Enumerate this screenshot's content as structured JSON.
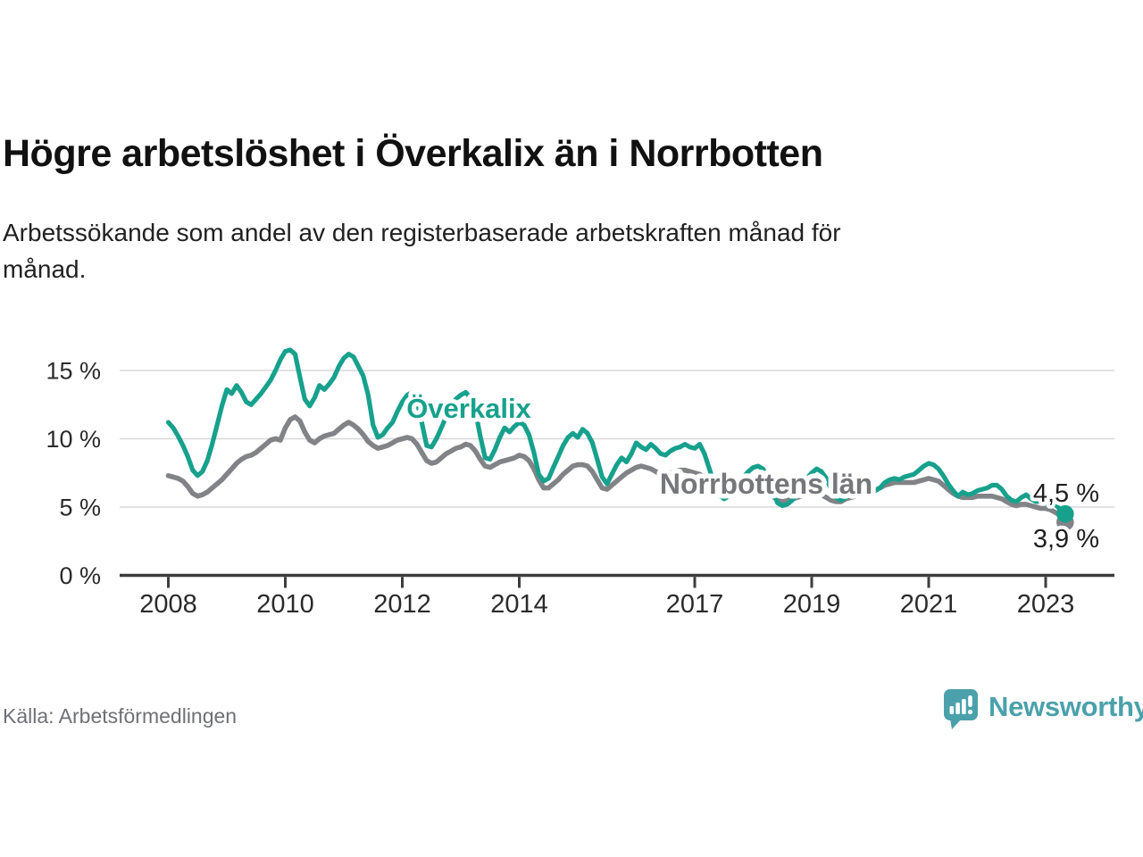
{
  "header": {
    "title": "Högre arbetslöshet i Överkalix än i Norrbotten",
    "subtitle_lines": [
      "Arbetssökande som andel av den registerbaserade arbetskraften månad för",
      "månad."
    ]
  },
  "footer": {
    "source": "Källa: Arbetsförmedlingen",
    "brand": "Newsworthy",
    "brand_color": "#4aa1ab",
    "logo_icon": "speech-bubble-bar-chart-icon"
  },
  "chart_data": {
    "type": "line",
    "title": "Högre arbetslöshet i Överkalix än i Norrbotten",
    "subtitle": "Arbetssökande som andel av den registerbaserade arbetskraften månad för månad.",
    "unit": "%",
    "x_start": "2008-01",
    "x_end": "2023-05",
    "x_frequency": "monthly",
    "x_tick_labels": [
      "2008",
      "2010",
      "2012",
      "2014",
      "2017",
      "2019",
      "2021",
      "2023"
    ],
    "y_tick_labels": [
      "0 %",
      "5 %",
      "10 %",
      "15 %"
    ],
    "y_tick_values": [
      0,
      5,
      10,
      15
    ],
    "ylim": [
      0,
      17
    ],
    "grid": "horizontal",
    "legend_position": "inline-labels",
    "colors": {
      "overkalix": "#17a18d",
      "norrbotten": "#828387",
      "gridline": "#d9d9d9",
      "axis": "#3d3d3d",
      "tick_text": "#2b2b2b",
      "end_label_text": "#1f1f1f"
    },
    "series": [
      {
        "name": "Överkalix",
        "color": "#17a18d",
        "end_label": "4,5 %",
        "end_value": 4.5,
        "values": [
          11.2,
          10.8,
          10.2,
          9.5,
          8.7,
          7.7,
          7.3,
          7.6,
          8.4,
          9.6,
          11.0,
          12.4,
          13.6,
          13.3,
          13.9,
          13.4,
          12.7,
          12.5,
          12.9,
          13.3,
          13.8,
          14.3,
          15.0,
          15.8,
          16.4,
          16.5,
          16.2,
          14.5,
          12.9,
          12.4,
          13.0,
          13.9,
          13.6,
          14.0,
          14.5,
          15.3,
          15.9,
          16.2,
          16.0,
          15.3,
          14.6,
          13.2,
          11.0,
          10.1,
          10.3,
          10.8,
          11.2,
          12.0,
          12.7,
          13.2,
          13.4,
          12.8,
          11.2,
          9.5,
          9.4,
          10.0,
          10.8,
          11.6,
          12.3,
          12.9,
          13.2,
          13.4,
          13.0,
          12.0,
          10.2,
          8.6,
          8.5,
          9.2,
          10.1,
          10.8,
          10.5,
          10.9,
          11.2,
          11.0,
          10.3,
          9.0,
          7.4,
          6.9,
          7.1,
          7.9,
          8.7,
          9.5,
          10.1,
          10.4,
          10.1,
          10.7,
          10.4,
          9.7,
          8.5,
          7.2,
          6.7,
          7.4,
          8.1,
          8.6,
          8.3,
          8.9,
          9.7,
          9.4,
          9.2,
          9.6,
          9.3,
          8.9,
          8.8,
          9.1,
          9.3,
          9.4,
          9.6,
          9.4,
          9.3,
          9.6,
          8.9,
          7.8,
          6.7,
          5.9,
          5.6,
          5.8,
          6.2,
          6.7,
          7.2,
          7.6,
          7.9,
          8.0,
          7.8,
          7.1,
          6.2,
          5.3,
          5.1,
          5.2,
          5.5,
          6.0,
          6.6,
          7.1,
          7.5,
          7.8,
          7.6,
          7.1,
          6.3,
          5.7,
          5.5,
          5.7,
          5.9,
          6.1,
          6.3,
          6.4,
          6.3,
          6.2,
          6.4,
          6.8,
          7.0,
          7.1,
          7.0,
          7.2,
          7.3,
          7.4,
          7.7,
          8.0,
          8.2,
          8.1,
          7.8,
          7.3,
          6.7,
          6.2,
          5.8,
          6.1,
          5.9,
          6.0,
          6.2,
          6.3,
          6.4,
          6.6,
          6.6,
          6.3,
          5.8,
          5.5,
          5.4,
          5.7,
          5.9,
          5.6,
          5.4,
          5.4,
          5.3,
          5.1,
          5.2,
          4.8,
          4.5
        ]
      },
      {
        "name": "Norrbottens län",
        "color": "#828387",
        "end_label": "3,9 %",
        "end_value": 3.9,
        "values": [
          7.3,
          7.2,
          7.1,
          6.9,
          6.5,
          6.0,
          5.8,
          5.9,
          6.1,
          6.4,
          6.7,
          7.0,
          7.4,
          7.8,
          8.2,
          8.5,
          8.7,
          8.8,
          9.0,
          9.3,
          9.6,
          9.9,
          10.0,
          9.9,
          10.8,
          11.4,
          11.6,
          11.3,
          10.5,
          9.9,
          9.7,
          10.0,
          10.2,
          10.3,
          10.4,
          10.7,
          11.0,
          11.2,
          11.0,
          10.7,
          10.3,
          9.8,
          9.5,
          9.3,
          9.4,
          9.5,
          9.7,
          9.9,
          10.0,
          10.1,
          10.0,
          9.6,
          9.0,
          8.4,
          8.2,
          8.3,
          8.6,
          8.9,
          9.1,
          9.3,
          9.4,
          9.6,
          9.5,
          9.1,
          8.5,
          8.0,
          7.9,
          8.1,
          8.3,
          8.4,
          8.5,
          8.6,
          8.8,
          8.7,
          8.4,
          7.8,
          7.0,
          6.4,
          6.4,
          6.7,
          7.0,
          7.4,
          7.7,
          8.0,
          8.1,
          8.1,
          8.0,
          7.6,
          7.0,
          6.4,
          6.3,
          6.6,
          6.9,
          7.2,
          7.5,
          7.7,
          7.9,
          8.0,
          7.9,
          7.8,
          7.6,
          7.4,
          7.4,
          7.5,
          7.6,
          7.7,
          7.7,
          7.6,
          7.5,
          7.4,
          7.2,
          6.9,
          6.5,
          6.2,
          6.1,
          6.2,
          6.3,
          6.4,
          6.5,
          6.6,
          6.6,
          6.6,
          6.4,
          6.1,
          5.8,
          5.5,
          5.4,
          5.5,
          5.6,
          5.7,
          5.8,
          5.9,
          6.0,
          6.0,
          5.9,
          5.7,
          5.5,
          5.4,
          5.4,
          5.6,
          5.7,
          5.8,
          5.9,
          6.0,
          6.1,
          6.2,
          6.4,
          6.6,
          6.7,
          6.8,
          6.8,
          6.8,
          6.8,
          6.8,
          6.9,
          7.0,
          7.1,
          7.0,
          6.9,
          6.6,
          6.3,
          6.0,
          5.8,
          5.7,
          5.7,
          5.7,
          5.8,
          5.8,
          5.8,
          5.8,
          5.7,
          5.6,
          5.4,
          5.2,
          5.1,
          5.2,
          5.2,
          5.1,
          5.0,
          4.9,
          4.9,
          4.8,
          4.6,
          4.4,
          3.9
        ]
      }
    ]
  }
}
